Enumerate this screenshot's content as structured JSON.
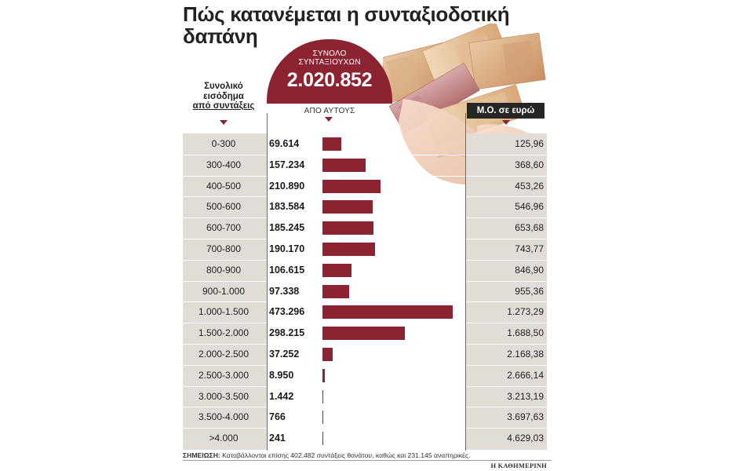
{
  "title": "Πώς κατανέμεται η συνταξιοδοτική δαπάνη",
  "total": {
    "label_line1": "ΣΥΝΟΛΟ",
    "label_line2": "ΣΥΝΤΑΞΙΟΥΧΩΝ",
    "value": "2.020.852"
  },
  "headers": {
    "income_line1": "Συνολικό",
    "income_line2": "εισόδημα",
    "income_line3": "από συντάξεις",
    "of_them": "ΑΠΟ ΑΥΤΟΥΣ",
    "average": "Μ.Ο. σε ευρώ"
  },
  "colors": {
    "accent": "#8b2332",
    "table_bg": "#e2dcd6",
    "header_dark": "#262626"
  },
  "chart_data": {
    "type": "bar",
    "orientation": "horizontal",
    "categories": [
      "0-300",
      "300-400",
      "400-500",
      "500-600",
      "600-700",
      "700-800",
      "800-900",
      "900-1.000",
      "1.000-1.500",
      "1.500-2.000",
      "2.000-2.500",
      "2.500-3.000",
      "3.000-3.500",
      "3.500-4.000",
      ">4.000"
    ],
    "series": [
      {
        "values": [
          69614,
          157234,
          210890,
          183584,
          185245,
          190170,
          106615,
          97338,
          473296,
          298215,
          37252,
          8950,
          1442,
          766,
          241
        ],
        "labels": [
          "69.614",
          "157.234",
          "210.890",
          "183.584",
          "185.245",
          "190.170",
          "106.615",
          "97.338",
          "473.296",
          "298.215",
          "37.252",
          "8.950",
          "1.442",
          "766",
          "241"
        ]
      }
    ],
    "average_eur": [
      "125,96",
      "368,60",
      "453,26",
      "546,96",
      "653,68",
      "743,77",
      "846,90",
      "955,36",
      "1.273,29",
      "1.688,50",
      "2.168,38",
      "2.666,14",
      "3.213,19",
      "3.697,63",
      "4.629,03"
    ],
    "xlim": [
      0,
      473296
    ],
    "grid": false,
    "legend": "none"
  },
  "note": {
    "label": "ΣΗΜΕΙΩΣΗ:",
    "text": " Καταβάλλονται επίσης 402.482 συντάξεις θανάτου, καθώς και 231.145 αναπηρικές."
  },
  "source": "Η ΚΑΘΗΜΕΡΙΝΗ",
  "photo_icon": "euro-banknotes-icon"
}
